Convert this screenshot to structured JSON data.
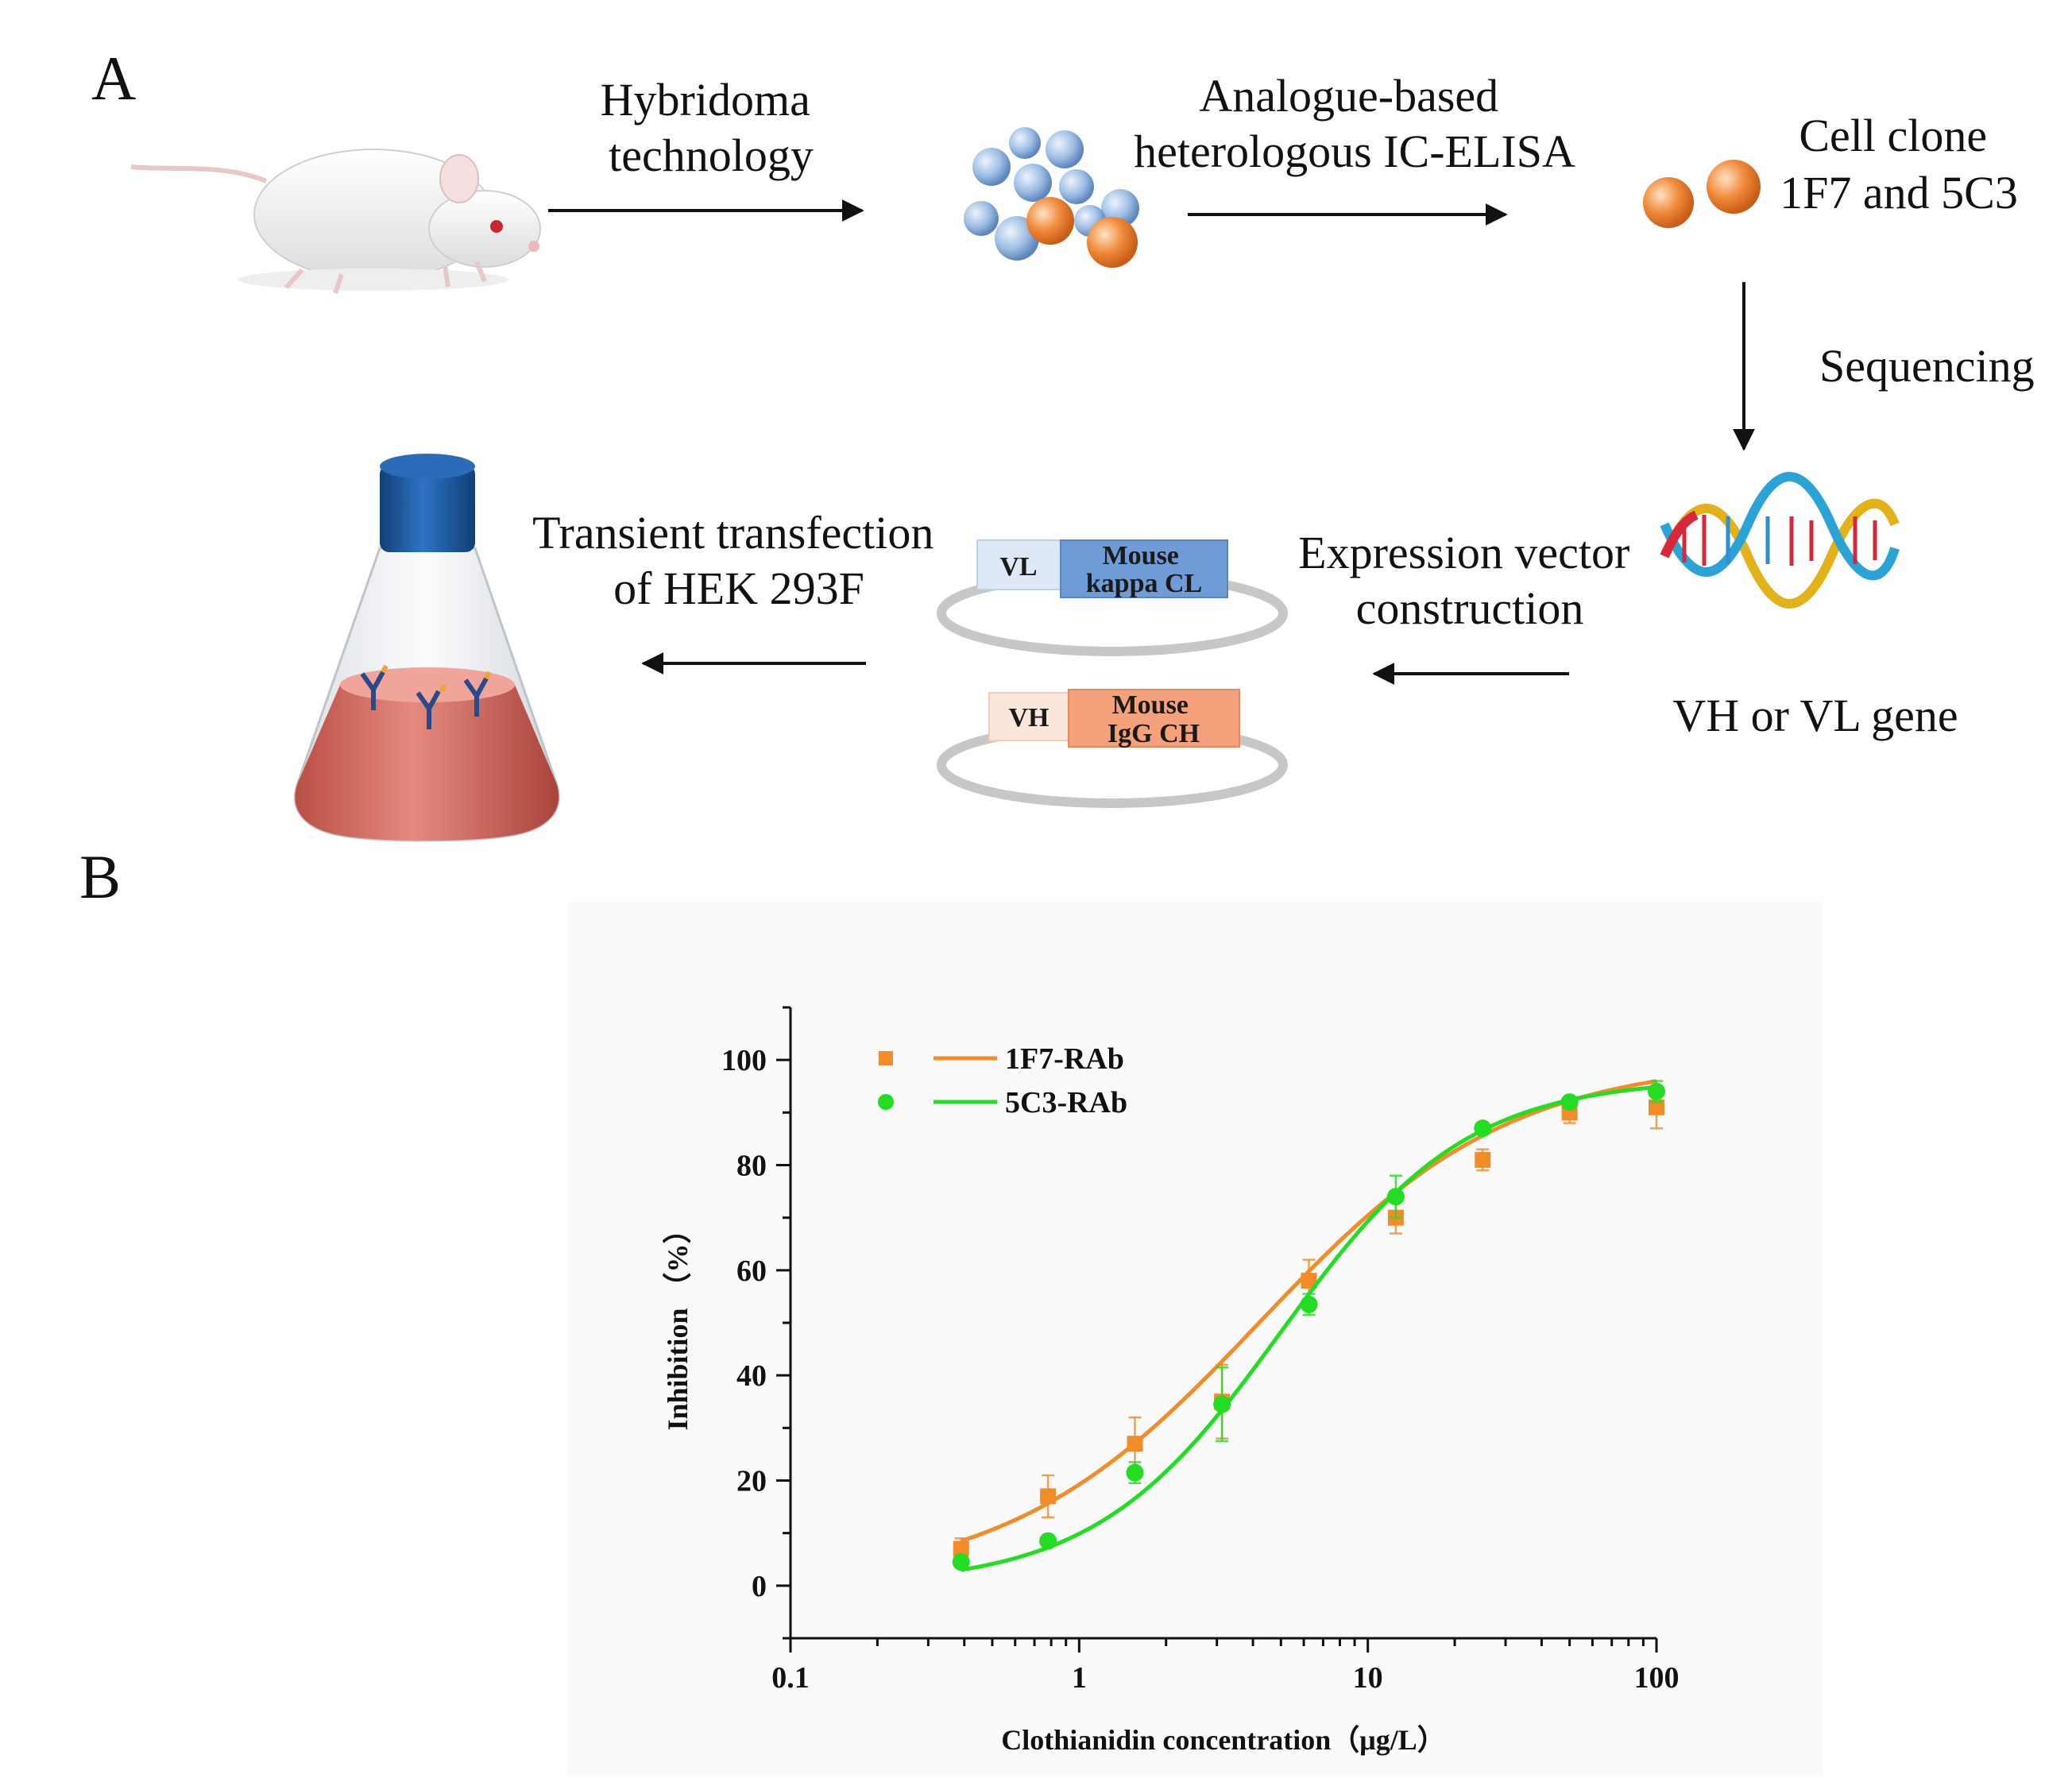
{
  "panel_a": {
    "label": "A",
    "steps": {
      "hybridoma": [
        "Hybridoma",
        "technology"
      ],
      "elisa": [
        "Analogue-based",
        "heterologous IC-ELISA"
      ],
      "clone": [
        "Cell clone",
        "1F7 and 5C3"
      ],
      "sequencing": "Sequencing",
      "gene": "VH or VL gene",
      "vector": [
        "Expression vector",
        "construction"
      ],
      "transfection": [
        "Transient transfection",
        "of HEK 293F"
      ]
    },
    "vectors": {
      "light": {
        "variable": "VL",
        "constant": [
          "Mouse",
          "kappa CL"
        ]
      },
      "heavy": {
        "variable": "VH",
        "constant": [
          "Mouse",
          "IgG CH"
        ]
      }
    },
    "colors": {
      "blue_cell": "#8fb3de",
      "orange_cell": "#ee8a3c",
      "flask_cap": "#1f5fa8",
      "medium": "#d9756a"
    }
  },
  "panel_b": {
    "label": "B"
  },
  "chart_data": {
    "type": "scatter",
    "xscale": "log",
    "xlim": [
      0.1,
      100
    ],
    "ylim": [
      -10,
      110
    ],
    "xticks": [
      0.1,
      1,
      10,
      100
    ],
    "xtick_labels": [
      "0.1",
      "1",
      "10",
      "100"
    ],
    "yticks": [
      0,
      20,
      40,
      60,
      80,
      100
    ],
    "ytick_labels": [
      "0",
      "20",
      "40",
      "60",
      "80",
      "100"
    ],
    "xlabel": "Clothianidin concentration（μg/L）",
    "ylabel": "Inhibition （%）",
    "legend_position": "top-left",
    "series": [
      {
        "name": "1F7-RAb",
        "marker": "square",
        "color": "#f28c28",
        "x": [
          0.39,
          0.78,
          1.56,
          3.125,
          6.25,
          12.5,
          25,
          50,
          100
        ],
        "y": [
          7,
          17,
          27,
          35,
          58,
          70,
          81,
          90,
          91
        ],
        "err": [
          2,
          4,
          5,
          7,
          4,
          3,
          2,
          2,
          4
        ],
        "fit": {
          "bottom": 0,
          "top": 100,
          "ec50": 4.2,
          "hill": 1.0
        }
      },
      {
        "name": "5C3-RAb",
        "marker": "circle",
        "color": "#22dd22",
        "x": [
          0.39,
          0.78,
          1.56,
          3.125,
          6.25,
          12.5,
          25,
          50,
          100
        ],
        "y": [
          4.5,
          8.5,
          21.5,
          34.5,
          53.5,
          74,
          87,
          92,
          94
        ],
        "err": [
          1,
          1,
          2,
          7,
          2,
          4,
          1,
          1,
          2
        ],
        "fit": {
          "bottom": 0,
          "top": 96.5,
          "ec50": 5.0,
          "hill": 1.35
        }
      }
    ]
  }
}
